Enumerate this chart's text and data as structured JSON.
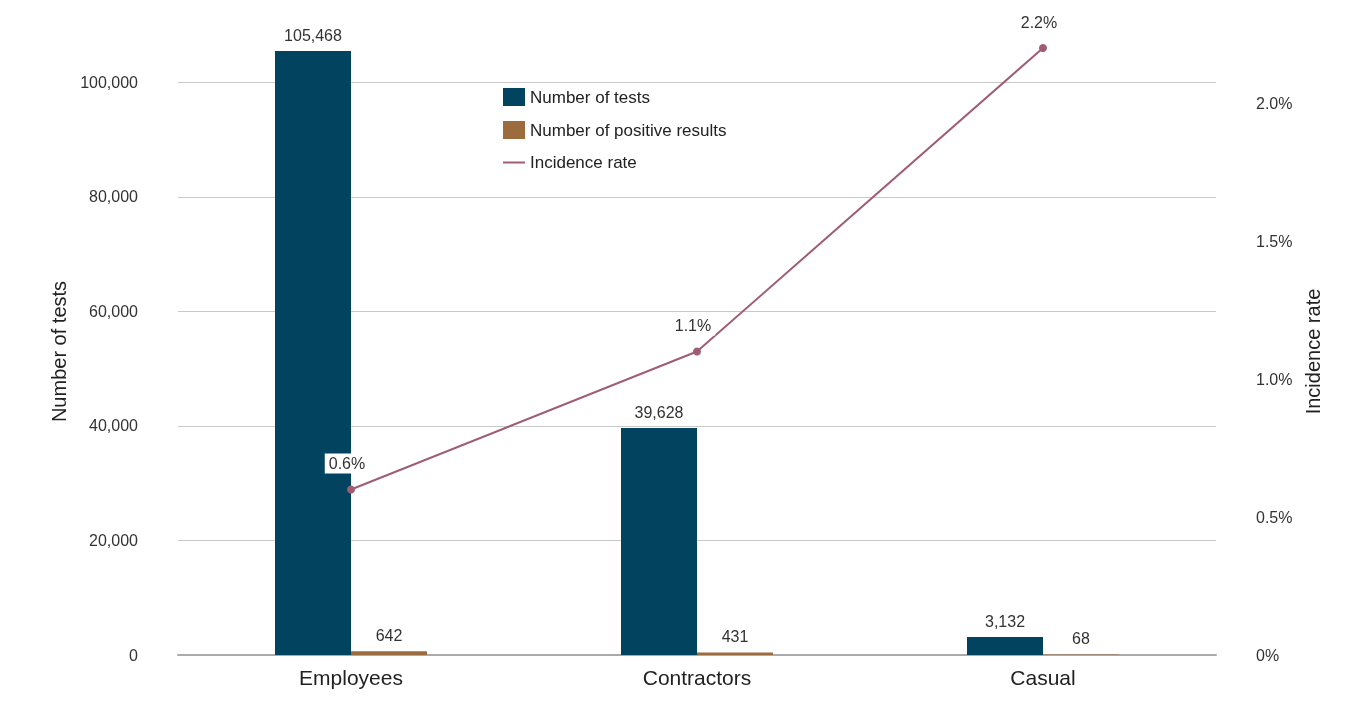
{
  "chart_data": {
    "type": "bar",
    "categories": [
      "Employees",
      "Contractors",
      "Casual"
    ],
    "series": [
      {
        "name": "Number of tests",
        "color": "#02435f",
        "values": [
          105468,
          39628,
          3132
        ],
        "value_labels": [
          "105,468",
          "39,628",
          "3,132"
        ]
      },
      {
        "name": "Number of positive results",
        "color": "#9c6b3e",
        "values": [
          642,
          431,
          68
        ],
        "value_labels": [
          "642",
          "431",
          "68"
        ]
      },
      {
        "name": "Incidence rate",
        "type": "line",
        "axis": "y2",
        "color": "#a05c70",
        "values": [
          0.6,
          1.1,
          2.2
        ],
        "value_labels": [
          "0.6%",
          "1.1%",
          "2.2%"
        ]
      }
    ],
    "ylabel": "Number of tests",
    "y2label": "Incidence rate",
    "ylim": [
      0,
      106000
    ],
    "yticks": [
      0,
      {
        "value": 20000,
        "label": "20,000"
      },
      {
        "value": 40000,
        "label": "40,000"
      },
      {
        "value": 60000,
        "label": "60,000"
      },
      {
        "value": 80000,
        "label": "80,000"
      },
      {
        "value": 100000,
        "label": "100,000"
      }
    ],
    "y2lim": [
      0,
      2.2
    ],
    "y2ticks": [
      {
        "value": 0,
        "label": "0%"
      },
      {
        "value": 0.5,
        "label": "0.5%"
      },
      {
        "value": 1,
        "label": "1.0%"
      },
      {
        "value": 1.5,
        "label": "1.5%"
      },
      {
        "value": 2,
        "label": "2.0%"
      }
    ],
    "grid": "y",
    "legend": "top center",
    "marker": "circle",
    "line_style": "solid"
  }
}
